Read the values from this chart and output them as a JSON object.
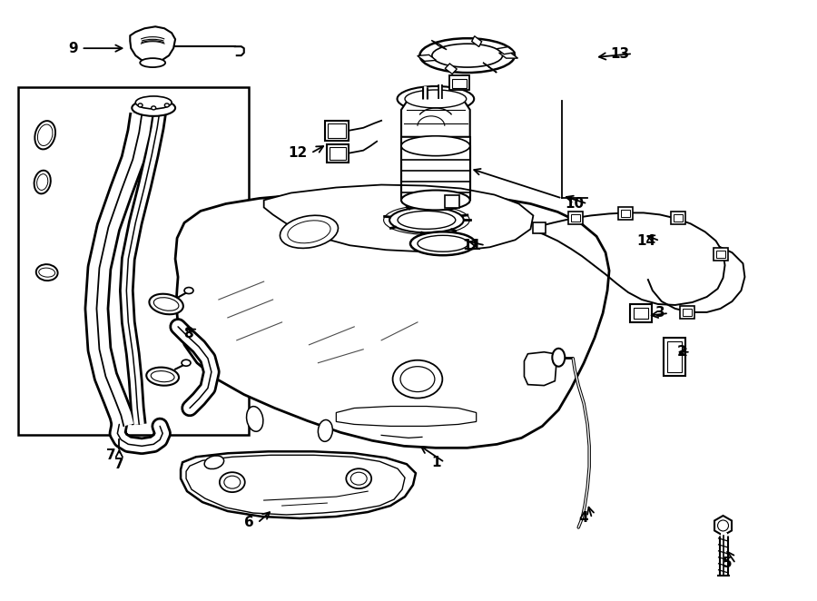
{
  "background_color": "#ffffff",
  "line_color": "#000000",
  "figsize": [
    9.0,
    6.62
  ],
  "dpi": 100,
  "label_positions": {
    "1": [
      490,
      510,
      460,
      490
    ],
    "2": [
      762,
      388,
      745,
      388
    ],
    "3": [
      738,
      345,
      714,
      348
    ],
    "4": [
      653,
      572,
      648,
      555
    ],
    "5": [
      812,
      622,
      800,
      605
    ],
    "6": [
      283,
      577,
      300,
      562
    ],
    "7": [
      130,
      502,
      130,
      492
    ],
    "8": [
      216,
      368,
      202,
      360
    ],
    "9": [
      88,
      52,
      138,
      52
    ],
    "10": [
      648,
      224,
      620,
      215
    ],
    "11": [
      535,
      270,
      513,
      265
    ],
    "12": [
      342,
      168,
      360,
      158
    ],
    "13": [
      698,
      58,
      656,
      62
    ],
    "14": [
      728,
      265,
      710,
      258
    ]
  }
}
